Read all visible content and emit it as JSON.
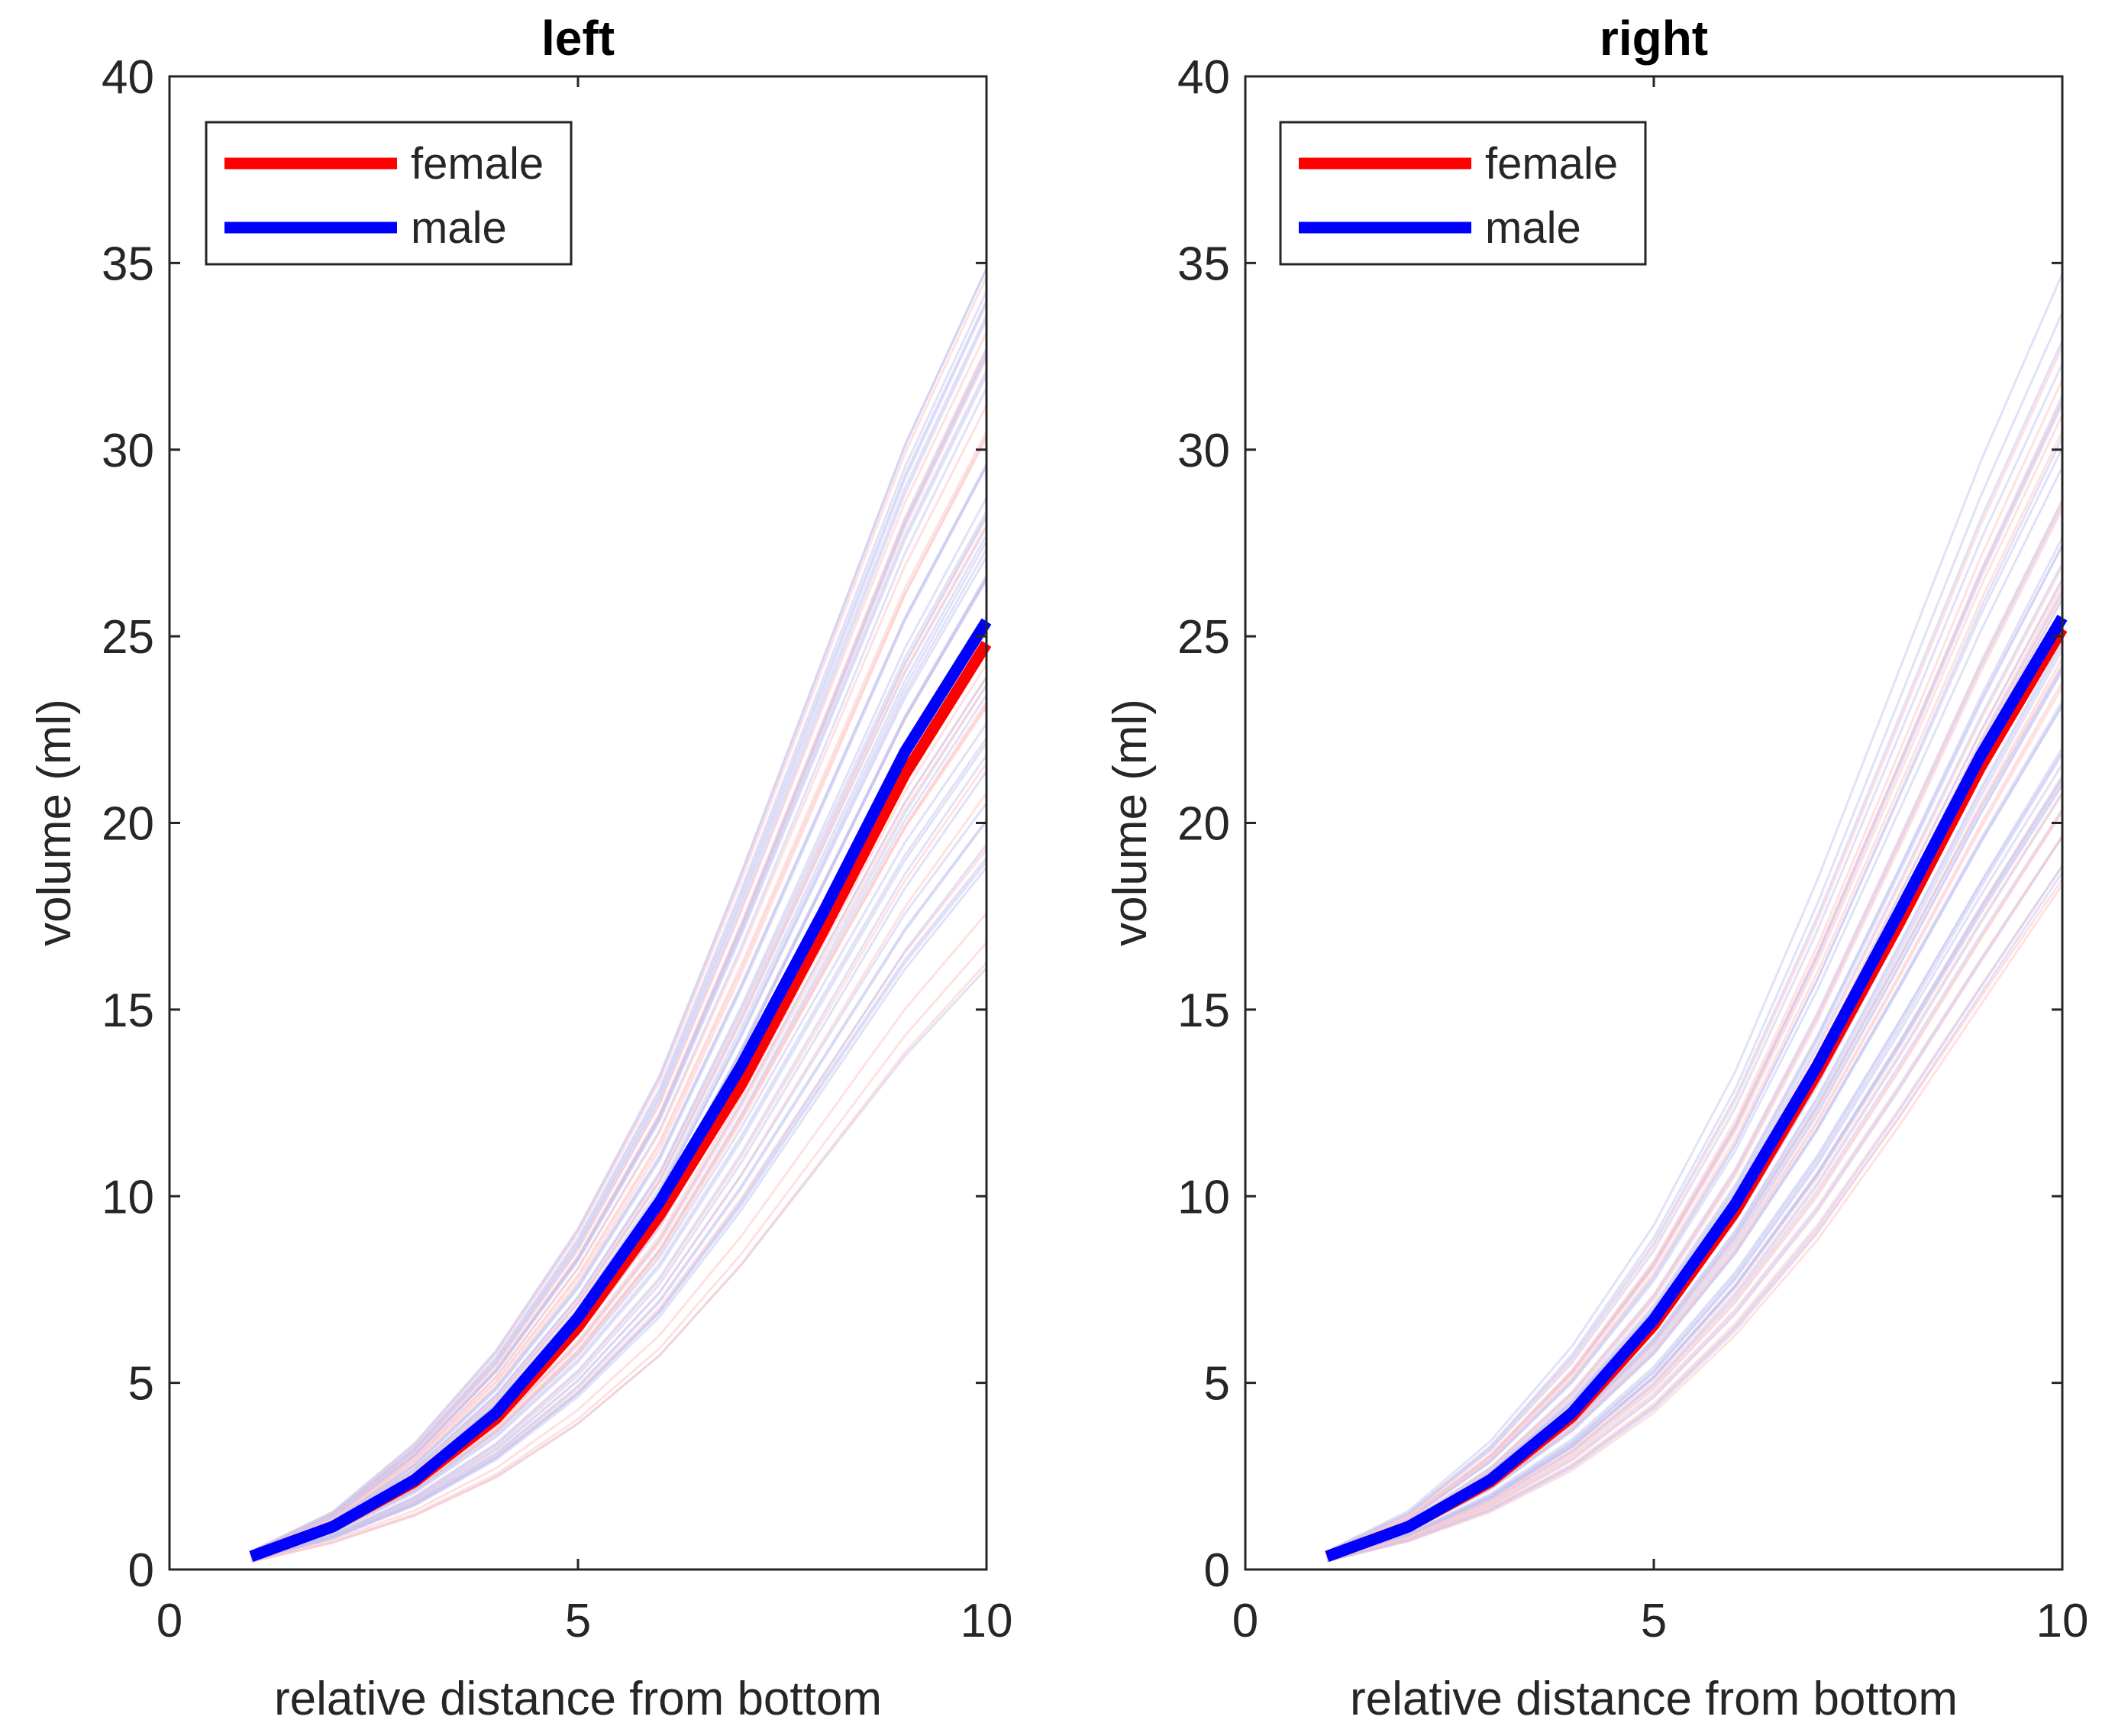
{
  "chart_data": [
    {
      "type": "line",
      "title": "left",
      "xlabel": "relative distance from bottom",
      "ylabel": "volume (ml)",
      "xlim": [
        0,
        10
      ],
      "ylim": [
        0,
        40
      ],
      "xticks": [
        0,
        5,
        10
      ],
      "yticks": [
        0,
        5,
        10,
        15,
        20,
        25,
        30,
        35,
        40
      ],
      "legend": {
        "placement": "top-left",
        "entries": [
          "female",
          "male"
        ]
      },
      "x": [
        1,
        2,
        3,
        4,
        5,
        6,
        7,
        8,
        9,
        10
      ],
      "series": [
        {
          "name": "female",
          "color": "#ff0000",
          "values": [
            0.35,
            1.15,
            2.35,
            4.05,
            6.5,
            9.5,
            13.0,
            17.1,
            21.3,
            24.8
          ]
        },
        {
          "name": "male",
          "color": "#0000ff",
          "values": [
            0.35,
            1.15,
            2.4,
            4.2,
            6.75,
            9.85,
            13.5,
            17.6,
            21.9,
            25.4
          ]
        }
      ],
      "background_band": {
        "lower": [
          0.2,
          0.7,
          1.4,
          2.4,
          3.8,
          5.6,
          8.0,
          10.8,
          13.6,
          16.0
        ],
        "upper": [
          0.5,
          1.6,
          3.5,
          6.1,
          9.5,
          13.8,
          19.5,
          25.5,
          31.5,
          36.5
        ]
      }
    },
    {
      "type": "line",
      "title": "right",
      "xlabel": "relative distance from bottom",
      "ylabel": "volume (ml)",
      "xlim": [
        0,
        10
      ],
      "ylim": [
        0,
        40
      ],
      "xticks": [
        0,
        5,
        10
      ],
      "yticks": [
        0,
        5,
        10,
        15,
        20,
        25,
        30,
        35,
        40
      ],
      "legend": {
        "placement": "top-left",
        "entries": [
          "female",
          "male"
        ]
      },
      "x": [
        1,
        2,
        3,
        4,
        5,
        6,
        7,
        8,
        9,
        10
      ],
      "series": [
        {
          "name": "female",
          "color": "#ff0000",
          "values": [
            0.35,
            1.15,
            2.35,
            4.1,
            6.55,
            9.6,
            13.3,
            17.3,
            21.5,
            25.2
          ]
        },
        {
          "name": "male",
          "color": "#0000ff",
          "values": [
            0.35,
            1.15,
            2.4,
            4.2,
            6.7,
            9.8,
            13.5,
            17.6,
            21.8,
            25.5
          ]
        }
      ],
      "background_band": {
        "lower": [
          0.2,
          0.7,
          1.4,
          2.4,
          3.8,
          5.7,
          8.0,
          10.8,
          13.8,
          16.8
        ],
        "upper": [
          0.5,
          1.6,
          3.5,
          6.1,
          9.4,
          13.6,
          18.8,
          24.5,
          30.2,
          35.3
        ]
      }
    }
  ]
}
